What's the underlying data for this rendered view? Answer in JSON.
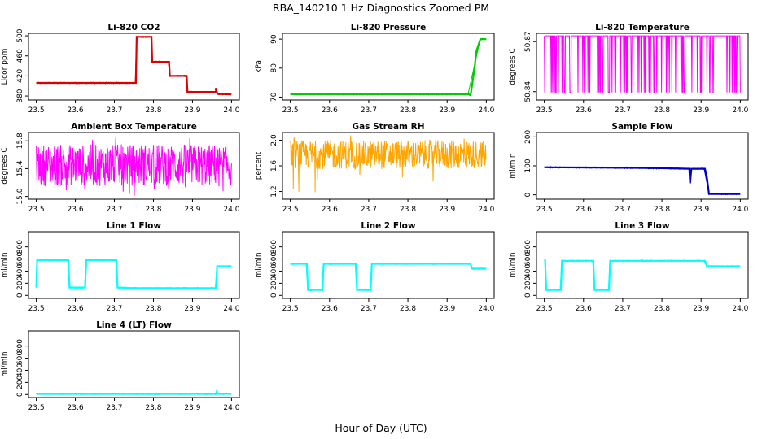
{
  "title": "RBA_140210  1 Hz Diagnostics Zoomed PM",
  "xlabel": "Hour of Day (UTC)",
  "chart_data": [
    {
      "id": "co2",
      "type": "line",
      "title": "Li-820 CO2",
      "ylabel": "Licor ppm",
      "xlim": [
        23.48,
        24.02
      ],
      "ylim": [
        372,
        505
      ],
      "xticks": [
        "23.5",
        "23.6",
        "23.7",
        "23.8",
        "23.9",
        "24.0"
      ],
      "yticks": [
        "380",
        "420",
        "460",
        "500"
      ],
      "ytick_values": [
        380,
        420,
        460,
        500
      ],
      "color": "#dd0000",
      "series": [
        {
          "x": [
            23.5,
            23.75,
            23.755,
            23.757,
            23.795,
            23.797,
            23.84,
            23.842,
            23.885,
            23.887,
            23.96,
            23.96,
            23.963,
            23.965,
            24.0
          ],
          "y": [
            406,
            406,
            406,
            498,
            498,
            448,
            448,
            420,
            420,
            388,
            388,
            396,
            386,
            384,
            383
          ]
        }
      ]
    },
    {
      "id": "pressure",
      "type": "line",
      "title": "Li-820 Pressure",
      "ylabel": "kPa",
      "xlim": [
        23.48,
        24.02
      ],
      "ylim": [
        69,
        92
      ],
      "xticks": [
        "23.5",
        "23.6",
        "23.7",
        "23.8",
        "23.9",
        "24.0"
      ],
      "yticks": [
        "70",
        "80",
        "90"
      ],
      "ytick_values": [
        70,
        80,
        90
      ],
      "color": "#00cc00",
      "series": [
        {
          "x": [
            23.5,
            23.955,
            23.96,
            23.97,
            23.975,
            23.985,
            24.0
          ],
          "y": [
            71,
            71,
            70.6,
            80,
            86,
            90,
            90
          ]
        }
      ]
    },
    {
      "id": "licor_temp",
      "type": "line",
      "title": "Li-820 Temperature",
      "ylabel": "degrees C",
      "xlim": [
        23.48,
        24.02
      ],
      "ylim": [
        50.835,
        50.875
      ],
      "xticks": [
        "23.5",
        "23.6",
        "23.7",
        "23.8",
        "23.9",
        "24.0"
      ],
      "yticks": [
        "50.84",
        "50.87"
      ],
      "ytick_values": [
        50.84,
        50.87
      ],
      "color": "#ff00ff",
      "noise": {
        "type": "binary",
        "low": 50.8395,
        "high": 50.8735,
        "density_high": 0.72
      },
      "series": [
        {
          "x": [
            23.5,
            24.0
          ],
          "y": [
            50.8395,
            50.8735
          ]
        }
      ]
    },
    {
      "id": "ambient_temp",
      "type": "line",
      "title": "Ambient Box Temperature",
      "ylabel": "degrees C",
      "xlim": [
        23.48,
        24.02
      ],
      "ylim": [
        14.96,
        15.92
      ],
      "xticks": [
        "23.5",
        "23.6",
        "23.7",
        "23.8",
        "23.9",
        "24.0"
      ],
      "yticks": [
        "15.0",
        "15.4",
        "15.8"
      ],
      "ytick_values": [
        15.0,
        15.4,
        15.8
      ],
      "color": "#ff00ff",
      "noise": {
        "type": "uniform",
        "low": 15.15,
        "high": 15.75,
        "spikes_low": 15.0,
        "spikes_high": 15.85
      },
      "series": [
        {
          "x": [
            23.5,
            24.0
          ],
          "y": [
            15.45,
            15.45
          ]
        }
      ]
    },
    {
      "id": "rh",
      "type": "line",
      "title": "Gas Stream RH",
      "ylabel": "percent",
      "xlim": [
        23.48,
        24.02
      ],
      "ylim": [
        1.08,
        2.12
      ],
      "xticks": [
        "23.5",
        "23.6",
        "23.7",
        "23.8",
        "23.9",
        "24.0"
      ],
      "yticks": [
        "1.2",
        "1.6",
        "2.0"
      ],
      "ytick_values": [
        1.2,
        1.6,
        2.0
      ],
      "color": "#ffa500",
      "noise": {
        "type": "uniform",
        "low": 1.55,
        "high": 2.0,
        "spikes_low": 1.15,
        "spikes_high": 2.08
      },
      "series": [
        {
          "x": [
            23.5,
            24.0
          ],
          "y": [
            1.75,
            1.75
          ]
        }
      ]
    },
    {
      "id": "sample_flow",
      "type": "line",
      "title": "Sample Flow",
      "ylabel": "ml/min",
      "xlim": [
        23.48,
        24.02
      ],
      "ylim": [
        -15,
        215
      ],
      "xticks": [
        "23.5",
        "23.6",
        "23.7",
        "23.8",
        "23.9",
        "24.0"
      ],
      "yticks": [
        "0",
        "100",
        "200"
      ],
      "ytick_values": [
        0,
        100,
        200
      ],
      "color": "#0000cc",
      "series": [
        {
          "x": [
            23.5,
            23.65,
            23.8,
            23.87,
            23.872,
            23.875,
            23.877,
            23.91,
            23.915,
            23.92,
            24.0
          ],
          "y": [
            95,
            94,
            92,
            90,
            40,
            88,
            90,
            90,
            60,
            3,
            3
          ]
        }
      ]
    },
    {
      "id": "line1",
      "type": "line",
      "title": "Line 1 Flow",
      "ylabel": "ml/min",
      "xlim": [
        23.48,
        24.02
      ],
      "ylim": [
        -50,
        1050
      ],
      "xticks": [
        "23.5",
        "23.6",
        "23.7",
        "23.8",
        "23.9",
        "24.0"
      ],
      "yticks": [
        "0",
        "200",
        "400",
        "600",
        "800"
      ],
      "ytick_values": [
        0,
        200,
        400,
        600,
        800
      ],
      "color": "#00ffff",
      "series": [
        {
          "x": [
            23.5,
            23.502,
            23.582,
            23.585,
            23.625,
            23.628,
            23.705,
            23.708,
            23.75,
            23.96,
            23.963,
            24.0
          ],
          "y": [
            130,
            580,
            580,
            130,
            130,
            580,
            580,
            130,
            120,
            120,
            480,
            480
          ]
        }
      ]
    },
    {
      "id": "line2",
      "type": "line",
      "title": "Line 2 Flow",
      "ylabel": "ml/min",
      "xlim": [
        23.48,
        24.02
      ],
      "ylim": [
        -50,
        1050
      ],
      "xticks": [
        "23.5",
        "23.6",
        "23.7",
        "23.8",
        "23.9",
        "24.0"
      ],
      "yticks": [
        "0",
        "200",
        "400",
        "600",
        "800"
      ],
      "ytick_values": [
        0,
        200,
        400,
        600,
        800
      ],
      "color": "#00ffff",
      "series": [
        {
          "x": [
            23.5,
            23.542,
            23.545,
            23.582,
            23.585,
            23.667,
            23.67,
            23.705,
            23.708,
            23.96,
            23.963,
            24.0
          ],
          "y": [
            520,
            520,
            90,
            90,
            520,
            520,
            90,
            90,
            520,
            520,
            440,
            440
          ]
        }
      ]
    },
    {
      "id": "line3",
      "type": "line",
      "title": "Line 3 Flow",
      "ylabel": "ml/min",
      "xlim": [
        23.48,
        24.02
      ],
      "ylim": [
        -50,
        1050
      ],
      "xticks": [
        "23.5",
        "23.6",
        "23.7",
        "23.8",
        "23.9",
        "24.0"
      ],
      "yticks": [
        "0",
        "200",
        "400",
        "600",
        "800"
      ],
      "ytick_values": [
        0,
        200,
        400,
        600,
        800
      ],
      "color": "#00ffff",
      "series": [
        {
          "x": [
            23.5,
            23.502,
            23.505,
            23.542,
            23.545,
            23.625,
            23.628,
            23.665,
            23.668,
            23.91,
            23.915,
            24.0
          ],
          "y": [
            580,
            580,
            90,
            90,
            570,
            570,
            90,
            90,
            570,
            570,
            480,
            480
          ]
        }
      ]
    },
    {
      "id": "line4",
      "type": "line",
      "title": "Line 4 (LT) Flow",
      "ylabel": "ml/min",
      "xlim": [
        23.48,
        24.02
      ],
      "ylim": [
        -50,
        1050
      ],
      "xticks": [
        "23.5",
        "23.6",
        "23.7",
        "23.8",
        "23.9",
        "24.0"
      ],
      "yticks": [
        "0",
        "200",
        "400",
        "600",
        "800"
      ],
      "ytick_values": [
        0,
        200,
        400,
        600,
        800
      ],
      "color": "#00ffff",
      "series": [
        {
          "x": [
            23.5,
            23.96,
            23.962,
            23.964,
            24.0
          ],
          "y": [
            10,
            10,
            50,
            10,
            10
          ]
        }
      ]
    }
  ]
}
